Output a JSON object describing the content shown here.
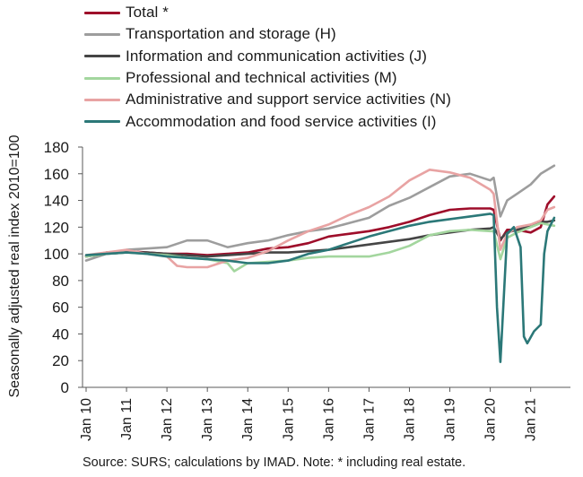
{
  "chart_data": {
    "type": "line",
    "ylabel": "Seasonally adjusted real index 2010=100",
    "xlabel": "",
    "ylim": [
      0,
      180
    ],
    "yticks": [
      0,
      20,
      40,
      60,
      80,
      100,
      120,
      140,
      160,
      180
    ],
    "xticks": [
      "Jan 10",
      "Jan 11",
      "Jan 12",
      "Jan 13",
      "Jan 14",
      "Jan 15",
      "Jan 16",
      "Jan 17",
      "Jan 18",
      "Jan 19",
      "Jan 20",
      "Jan 21"
    ],
    "x_start": "2010-01",
    "frequency": "monthly",
    "source": "Source:  SURS; calculations by IMAD. Note: * including real estate.",
    "series": [
      {
        "name": "Total *",
        "color": "#9e0d2a",
        "points": [
          [
            "2010-01",
            98
          ],
          [
            "2010-07",
            101
          ],
          [
            "2011-01",
            102
          ],
          [
            "2011-07",
            101
          ],
          [
            "2012-01",
            100
          ],
          [
            "2012-07",
            100
          ],
          [
            "2013-01",
            99
          ],
          [
            "2013-07",
            100
          ],
          [
            "2014-01",
            101
          ],
          [
            "2014-07",
            104
          ],
          [
            "2015-01",
            105
          ],
          [
            "2015-07",
            108
          ],
          [
            "2016-01",
            113
          ],
          [
            "2016-07",
            115
          ],
          [
            "2017-01",
            117
          ],
          [
            "2017-07",
            120
          ],
          [
            "2018-01",
            124
          ],
          [
            "2018-07",
            129
          ],
          [
            "2019-01",
            133
          ],
          [
            "2019-07",
            134
          ],
          [
            "2020-01",
            134
          ],
          [
            "2020-02",
            133
          ],
          [
            "2020-04",
            110
          ],
          [
            "2020-06",
            118
          ],
          [
            "2020-09",
            118
          ],
          [
            "2021-01",
            116
          ],
          [
            "2021-04",
            120
          ],
          [
            "2021-06",
            137
          ],
          [
            "2021-08",
            143
          ]
        ]
      },
      {
        "name": "Transportation and storage (H)",
        "color": "#9d9d9d",
        "points": [
          [
            "2010-01",
            95
          ],
          [
            "2010-07",
            100
          ],
          [
            "2011-01",
            103
          ],
          [
            "2011-07",
            104
          ],
          [
            "2012-01",
            105
          ],
          [
            "2012-07",
            110
          ],
          [
            "2013-01",
            110
          ],
          [
            "2013-07",
            105
          ],
          [
            "2014-01",
            108
          ],
          [
            "2014-07",
            110
          ],
          [
            "2015-01",
            114
          ],
          [
            "2015-07",
            117
          ],
          [
            "2016-01",
            119
          ],
          [
            "2016-07",
            123
          ],
          [
            "2017-01",
            127
          ],
          [
            "2017-07",
            136
          ],
          [
            "2018-01",
            142
          ],
          [
            "2018-07",
            150
          ],
          [
            "2019-01",
            158
          ],
          [
            "2019-07",
            160
          ],
          [
            "2020-01",
            155
          ],
          [
            "2020-02",
            157
          ],
          [
            "2020-04",
            128
          ],
          [
            "2020-06",
            140
          ],
          [
            "2020-09",
            145
          ],
          [
            "2021-01",
            152
          ],
          [
            "2021-04",
            160
          ],
          [
            "2021-06",
            163
          ],
          [
            "2021-08",
            166
          ]
        ]
      },
      {
        "name": "Information and communication activities (J)",
        "color": "#454545",
        "points": [
          [
            "2010-01",
            98
          ],
          [
            "2010-07",
            100
          ],
          [
            "2011-01",
            101
          ],
          [
            "2011-07",
            101
          ],
          [
            "2012-01",
            100
          ],
          [
            "2012-07",
            99
          ],
          [
            "2013-01",
            98
          ],
          [
            "2013-07",
            99
          ],
          [
            "2014-01",
            100
          ],
          [
            "2014-07",
            101
          ],
          [
            "2015-01",
            101
          ],
          [
            "2015-07",
            102
          ],
          [
            "2016-01",
            103
          ],
          [
            "2016-07",
            105
          ],
          [
            "2017-01",
            107
          ],
          [
            "2017-07",
            109
          ],
          [
            "2018-01",
            111
          ],
          [
            "2018-07",
            114
          ],
          [
            "2019-01",
            116
          ],
          [
            "2019-07",
            118
          ],
          [
            "2020-01",
            119
          ],
          [
            "2020-02",
            120
          ],
          [
            "2020-04",
            111
          ],
          [
            "2020-06",
            116
          ],
          [
            "2020-09",
            118
          ],
          [
            "2021-01",
            121
          ],
          [
            "2021-04",
            124
          ],
          [
            "2021-06",
            124
          ],
          [
            "2021-08",
            125
          ]
        ]
      },
      {
        "name": "Professional and technical activities (M)",
        "color": "#a3d69e",
        "points": [
          [
            "2010-01",
            98
          ],
          [
            "2010-07",
            100
          ],
          [
            "2011-01",
            101
          ],
          [
            "2011-07",
            100
          ],
          [
            "2012-01",
            99
          ],
          [
            "2012-07",
            97
          ],
          [
            "2013-01",
            96
          ],
          [
            "2013-07",
            93
          ],
          [
            "2013-09",
            87
          ],
          [
            "2014-01",
            93
          ],
          [
            "2014-07",
            94
          ],
          [
            "2015-01",
            95
          ],
          [
            "2015-07",
            97
          ],
          [
            "2016-01",
            98
          ],
          [
            "2016-07",
            98
          ],
          [
            "2017-01",
            98
          ],
          [
            "2017-07",
            101
          ],
          [
            "2018-01",
            106
          ],
          [
            "2018-07",
            114
          ],
          [
            "2019-01",
            117
          ],
          [
            "2019-07",
            118
          ],
          [
            "2020-01",
            117
          ],
          [
            "2020-02",
            117
          ],
          [
            "2020-04",
            96
          ],
          [
            "2020-06",
            112
          ],
          [
            "2020-09",
            116
          ],
          [
            "2021-01",
            120
          ],
          [
            "2021-04",
            123
          ],
          [
            "2021-06",
            122
          ],
          [
            "2021-08",
            121
          ]
        ]
      },
      {
        "name": "Administrative and support service activities (N)",
        "color": "#e8a3a3",
        "points": [
          [
            "2010-01",
            99
          ],
          [
            "2010-07",
            101
          ],
          [
            "2011-01",
            103
          ],
          [
            "2011-07",
            100
          ],
          [
            "2012-01",
            98
          ],
          [
            "2012-04",
            91
          ],
          [
            "2012-07",
            90
          ],
          [
            "2013-01",
            90
          ],
          [
            "2013-07",
            95
          ],
          [
            "2014-01",
            97
          ],
          [
            "2014-07",
            102
          ],
          [
            "2015-01",
            110
          ],
          [
            "2015-07",
            117
          ],
          [
            "2016-01",
            122
          ],
          [
            "2016-07",
            129
          ],
          [
            "2017-01",
            135
          ],
          [
            "2017-07",
            143
          ],
          [
            "2018-01",
            155
          ],
          [
            "2018-07",
            163
          ],
          [
            "2019-01",
            161
          ],
          [
            "2019-07",
            157
          ],
          [
            "2020-01",
            148
          ],
          [
            "2020-02",
            145
          ],
          [
            "2020-04",
            103
          ],
          [
            "2020-06",
            115
          ],
          [
            "2020-09",
            120
          ],
          [
            "2021-01",
            122
          ],
          [
            "2021-04",
            125
          ],
          [
            "2021-06",
            133
          ],
          [
            "2021-08",
            135
          ]
        ]
      },
      {
        "name": "Accommodation and food service activities (I)",
        "color": "#2b7878",
        "points": [
          [
            "2010-01",
            99
          ],
          [
            "2010-07",
            100
          ],
          [
            "2011-01",
            101
          ],
          [
            "2011-07",
            100
          ],
          [
            "2012-01",
            98
          ],
          [
            "2012-07",
            97
          ],
          [
            "2013-01",
            96
          ],
          [
            "2013-07",
            95
          ],
          [
            "2014-01",
            93
          ],
          [
            "2014-07",
            93
          ],
          [
            "2015-01",
            95
          ],
          [
            "2015-07",
            100
          ],
          [
            "2016-01",
            103
          ],
          [
            "2016-07",
            108
          ],
          [
            "2017-01",
            113
          ],
          [
            "2017-07",
            117
          ],
          [
            "2018-01",
            121
          ],
          [
            "2018-07",
            124
          ],
          [
            "2019-01",
            126
          ],
          [
            "2019-07",
            128
          ],
          [
            "2020-01",
            130
          ],
          [
            "2020-02",
            129
          ],
          [
            "2020-03",
            60
          ],
          [
            "2020-04",
            19
          ],
          [
            "2020-06",
            115
          ],
          [
            "2020-08",
            120
          ],
          [
            "2020-10",
            105
          ],
          [
            "2020-11",
            38
          ],
          [
            "2020-12",
            33
          ],
          [
            "2021-02",
            42
          ],
          [
            "2021-04",
            47
          ],
          [
            "2021-05",
            100
          ],
          [
            "2021-06",
            117
          ],
          [
            "2021-08",
            127
          ]
        ]
      }
    ]
  }
}
